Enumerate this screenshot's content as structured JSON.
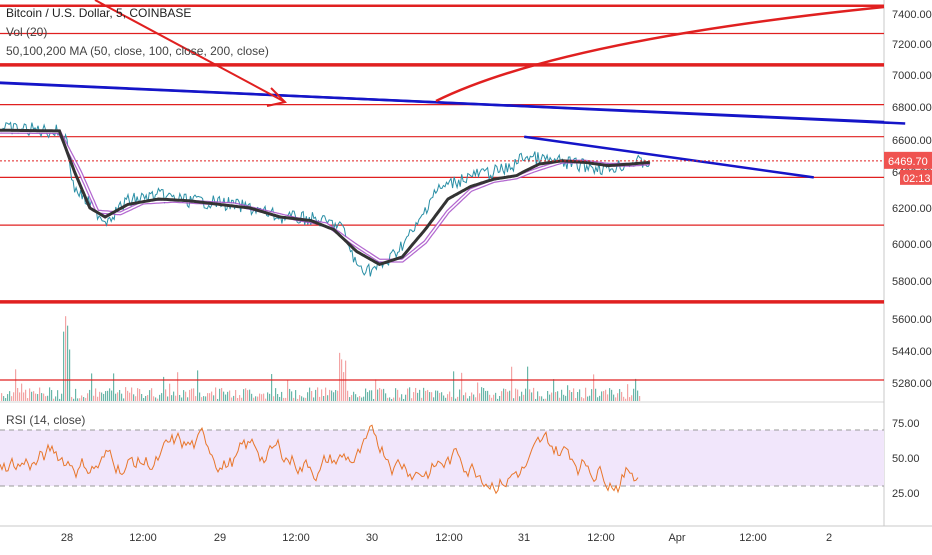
{
  "header": {
    "title": "Bitcoin / U.S. Dollar, 5, COINBASE",
    "volume_label": "Vol (20)",
    "ma_label": "50,100,200 MA (50, close, 100, close, 200, close)",
    "rsi_label": "RSI (14, close)"
  },
  "price_tag": {
    "value": "6469.70",
    "countdown": "02:13",
    "color": "#ef5350"
  },
  "colors": {
    "price": "#2a8fa6",
    "ma_fast": "#333333",
    "ma_band": "#a64dc8",
    "hline": "#e02020",
    "trendline": "#1515c8",
    "rsi": "#e8762b",
    "rsi_band": "#f1e6fb",
    "volume_up": "#69b6a8",
    "volume_down": "#f3a4a4"
  },
  "chart_data": [
    {
      "type": "line",
      "panel": "price",
      "y_ticks": [
        5280,
        5440,
        5600,
        5800,
        6000,
        6200,
        6400,
        6600,
        6800,
        7000,
        7200,
        7400
      ],
      "x_ticks": [
        "28",
        "12:00",
        "29",
        "12:00",
        "30",
        "12:00",
        "31",
        "12:00",
        "Apr",
        "12:00",
        "2"
      ],
      "x_range": [
        0,
        12.0
      ],
      "price_path": [
        [
          0,
          6670
        ],
        [
          0.5,
          6665
        ],
        [
          0.9,
          6650
        ],
        [
          1.0,
          6600
        ],
        [
          1.08,
          6320
        ],
        [
          1.3,
          6220
        ],
        [
          1.5,
          6130
        ],
        [
          1.8,
          6240
        ],
        [
          2.2,
          6270
        ],
        [
          2.6,
          6240
        ],
        [
          3.0,
          6230
        ],
        [
          3.4,
          6200
        ],
        [
          3.8,
          6150
        ],
        [
          4.2,
          6140
        ],
        [
          4.6,
          6100
        ],
        [
          4.8,
          5880
        ],
        [
          5.0,
          5860
        ],
        [
          5.2,
          5900
        ],
        [
          5.4,
          6000
        ],
        [
          5.6,
          6100
        ],
        [
          5.8,
          6280
        ],
        [
          6.0,
          6330
        ],
        [
          6.3,
          6380
        ],
        [
          6.6,
          6400
        ],
        [
          6.8,
          6420
        ],
        [
          7.0,
          6500
        ],
        [
          7.2,
          6480
        ],
        [
          7.5,
          6460
        ],
        [
          7.8,
          6440
        ],
        [
          8.1,
          6420
        ],
        [
          8.4,
          6460
        ],
        [
          8.65,
          6460
        ]
      ],
      "ma_fast_path": [
        [
          0,
          6660
        ],
        [
          0.9,
          6655
        ],
        [
          1.1,
          6400
        ],
        [
          1.3,
          6200
        ],
        [
          1.5,
          6150
        ],
        [
          1.8,
          6220
        ],
        [
          2.2,
          6250
        ],
        [
          2.6,
          6240
        ],
        [
          3.0,
          6220
        ],
        [
          3.4,
          6200
        ],
        [
          3.8,
          6150
        ],
        [
          4.2,
          6130
        ],
        [
          4.5,
          6080
        ],
        [
          4.8,
          5960
        ],
        [
          5.1,
          5890
        ],
        [
          5.4,
          5930
        ],
        [
          5.7,
          6080
        ],
        [
          6.0,
          6250
        ],
        [
          6.3,
          6320
        ],
        [
          6.6,
          6360
        ],
        [
          6.9,
          6380
        ],
        [
          7.2,
          6450
        ],
        [
          7.5,
          6470
        ],
        [
          7.8,
          6460
        ],
        [
          8.1,
          6440
        ],
        [
          8.4,
          6450
        ],
        [
          8.65,
          6460
        ]
      ],
      "ma_band_path": [
        [
          0,
          6650
        ],
        [
          0.9,
          6648
        ],
        [
          1.15,
          6420
        ],
        [
          1.4,
          6180
        ],
        [
          1.7,
          6170
        ],
        [
          2.0,
          6230
        ],
        [
          2.4,
          6240
        ],
        [
          2.8,
          6230
        ],
        [
          3.2,
          6220
        ],
        [
          3.6,
          6180
        ],
        [
          4.0,
          6140
        ],
        [
          4.4,
          6110
        ],
        [
          4.8,
          5990
        ],
        [
          5.1,
          5910
        ],
        [
          5.4,
          5910
        ],
        [
          5.7,
          6010
        ],
        [
          6.0,
          6180
        ],
        [
          6.3,
          6300
        ],
        [
          6.6,
          6350
        ],
        [
          6.9,
          6370
        ],
        [
          7.2,
          6420
        ],
        [
          7.5,
          6465
        ],
        [
          7.8,
          6465
        ],
        [
          8.1,
          6445
        ],
        [
          8.4,
          6445
        ],
        [
          8.65,
          6455
        ]
      ],
      "horizontal_levels": [
        7455,
        7270,
        7065,
        6815,
        6620,
        6370,
        6105,
        5690,
        5295
      ],
      "thick_levels": [
        7065,
        5690
      ],
      "trendlines": [
        {
          "from": [
            0,
            6955
          ],
          "to": [
            12.0,
            6700
          ]
        },
        {
          "from": [
            7.0,
            6620
          ],
          "to": [
            10.8,
            6370
          ]
        }
      ],
      "arrows": [
        {
          "from": [
            1.4,
            7500
          ],
          "to": [
            3.9,
            6840
          ]
        }
      ],
      "arc": {
        "from": [
          5.85,
          6830
        ],
        "to": [
          12.0,
          7450
        ]
      },
      "last_price": 6469.7
    },
    {
      "type": "line",
      "panel": "rsi",
      "y_ticks": [
        25,
        50,
        75
      ],
      "upper_band": 70,
      "lower_band": 30
    }
  ]
}
